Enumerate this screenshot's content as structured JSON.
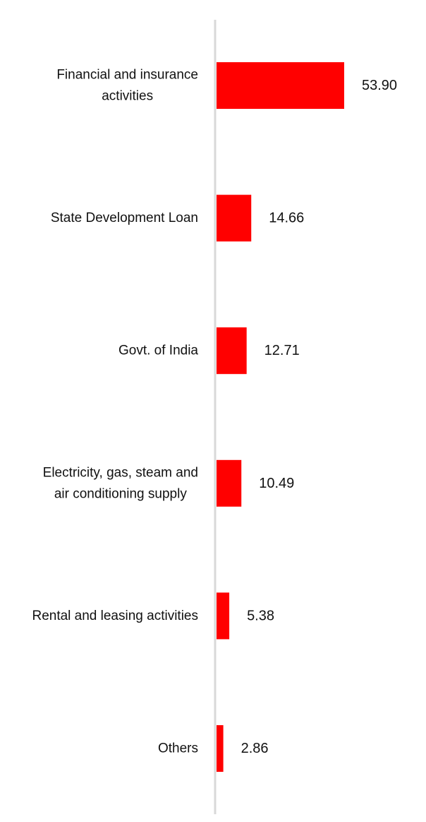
{
  "chart_data": {
    "type": "bar",
    "orientation": "horizontal",
    "categories": [
      [
        "Financial and insurance",
        "activities"
      ],
      [
        "State Development Loan"
      ],
      [
        "Govt. of India"
      ],
      [
        "Electricity, gas, steam and",
        "air conditioning supply"
      ],
      [
        "Rental and leasing activities"
      ],
      [
        "Others"
      ]
    ],
    "values": [
      53.9,
      14.66,
      12.71,
      10.49,
      5.38,
      2.86
    ],
    "value_labels": [
      "53.90",
      "14.66",
      "12.71",
      "10.49",
      "5.38",
      "2.86"
    ],
    "xlim": [
      0,
      60
    ],
    "grid": false,
    "legend": "none",
    "colors": {
      "bar": "#ff0000",
      "axis": "#d9d9d9",
      "text": "#111111"
    }
  }
}
